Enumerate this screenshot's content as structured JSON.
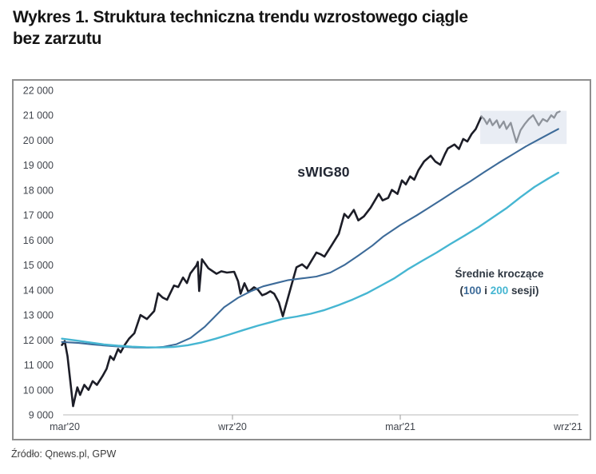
{
  "title_line1": "Wykres 1. Struktura techniczna trendu wzrostowego ciągle",
  "title_line2": "bez zarzutu",
  "source": "Źródło: Qnews.pl, GPW",
  "chart_data": {
    "type": "line",
    "title": "Wykres 1. Struktura techniczna trendu wzrostowego ciągle bez zarzutu",
    "series_label": "sWIG80",
    "legend": {
      "title": "Średnie kroczące",
      "open": "(",
      "ma100": "100",
      "mid": " i ",
      "ma200": "200",
      "close": " sesji)"
    },
    "colors": {
      "swig80": "#1c1d27",
      "swig80_recent": "#8e939b",
      "ma100": "#3d6b99",
      "ma200": "#46b6d2",
      "highlight": "#e9edf4",
      "axis_line": "#c6c6c6",
      "tick": "#a9a9a9",
      "axis_text": "#41454d"
    },
    "grid": false,
    "legend_position": "inside-right",
    "x_axis": {
      "unit": "months since mar'20",
      "tick_labels": [
        "mar'20",
        "wrz'20",
        "mar'21",
        "wrz'21"
      ],
      "tick_months": [
        0,
        6,
        12,
        18
      ]
    },
    "y_axis": {
      "min": 9000,
      "max": 22000,
      "step": 1000,
      "labels": [
        "22 000",
        "21 000",
        "20 000",
        "19 000",
        "18 000",
        "17 000",
        "16 000",
        "15 000",
        "14 000",
        "13 000",
        "12 000",
        "11 000",
        "10 000",
        "9 000"
      ]
    },
    "highlight": {
      "m0": 14.86,
      "m1": 17.95,
      "v0": 19850,
      "v1": 21180
    },
    "series": [
      {
        "name": "sWIG80",
        "color_key": "swig80",
        "width": 2.6,
        "points": [
          [
            -0.1,
            11800
          ],
          [
            0.0,
            11950
          ],
          [
            0.1,
            11350
          ],
          [
            0.3,
            9350
          ],
          [
            0.45,
            10100
          ],
          [
            0.55,
            9800
          ],
          [
            0.7,
            10200
          ],
          [
            0.85,
            10000
          ],
          [
            1.0,
            10350
          ],
          [
            1.15,
            10200
          ],
          [
            1.35,
            10550
          ],
          [
            1.5,
            10850
          ],
          [
            1.63,
            11350
          ],
          [
            1.75,
            11200
          ],
          [
            1.91,
            11640
          ],
          [
            2.0,
            11500
          ],
          [
            2.14,
            11790
          ],
          [
            2.3,
            12050
          ],
          [
            2.49,
            12270
          ],
          [
            2.71,
            13000
          ],
          [
            2.94,
            12840
          ],
          [
            3.2,
            13160
          ],
          [
            3.34,
            13870
          ],
          [
            3.5,
            13700
          ],
          [
            3.66,
            13610
          ],
          [
            3.91,
            14180
          ],
          [
            4.06,
            14120
          ],
          [
            4.23,
            14500
          ],
          [
            4.37,
            14280
          ],
          [
            4.49,
            14660
          ],
          [
            4.71,
            14980
          ],
          [
            4.76,
            15130
          ],
          [
            4.81,
            13960
          ],
          [
            4.91,
            15230
          ],
          [
            5.14,
            14870
          ],
          [
            5.43,
            14650
          ],
          [
            5.6,
            14750
          ],
          [
            5.8,
            14700
          ],
          [
            6.06,
            14730
          ],
          [
            6.2,
            14350
          ],
          [
            6.29,
            13850
          ],
          [
            6.43,
            14270
          ],
          [
            6.57,
            13920
          ],
          [
            6.77,
            14110
          ],
          [
            6.91,
            14010
          ],
          [
            7.06,
            13790
          ],
          [
            7.2,
            13850
          ],
          [
            7.35,
            13950
          ],
          [
            7.49,
            13850
          ],
          [
            7.66,
            13500
          ],
          [
            7.8,
            12950
          ],
          [
            8.09,
            14110
          ],
          [
            8.29,
            14910
          ],
          [
            8.49,
            15030
          ],
          [
            8.66,
            14870
          ],
          [
            9.0,
            15500
          ],
          [
            9.14,
            15440
          ],
          [
            9.29,
            15340
          ],
          [
            9.55,
            15800
          ],
          [
            9.8,
            16250
          ],
          [
            10.0,
            17050
          ],
          [
            10.14,
            16890
          ],
          [
            10.34,
            17210
          ],
          [
            10.5,
            16790
          ],
          [
            10.7,
            16950
          ],
          [
            10.94,
            17300
          ],
          [
            11.23,
            17850
          ],
          [
            11.37,
            17590
          ],
          [
            11.57,
            17690
          ],
          [
            11.7,
            18010
          ],
          [
            11.9,
            17850
          ],
          [
            12.06,
            18390
          ],
          [
            12.2,
            18230
          ],
          [
            12.35,
            18550
          ],
          [
            12.5,
            18420
          ],
          [
            12.65,
            18800
          ],
          [
            12.85,
            19150
          ],
          [
            13.09,
            19380
          ],
          [
            13.25,
            19150
          ],
          [
            13.43,
            19020
          ],
          [
            13.6,
            19450
          ],
          [
            13.7,
            19670
          ],
          [
            13.94,
            19830
          ],
          [
            14.1,
            19650
          ],
          [
            14.25,
            20050
          ],
          [
            14.4,
            19950
          ],
          [
            14.55,
            20250
          ],
          [
            14.7,
            20450
          ],
          [
            14.8,
            20700
          ],
          [
            14.9,
            20950
          ]
        ]
      },
      {
        "name": "sWIG80-recent",
        "color_key": "swig80_recent",
        "width": 2.3,
        "points": [
          [
            14.9,
            20950
          ],
          [
            15.0,
            20850
          ],
          [
            15.1,
            20650
          ],
          [
            15.2,
            20850
          ],
          [
            15.3,
            20600
          ],
          [
            15.45,
            20800
          ],
          [
            15.55,
            20500
          ],
          [
            15.7,
            20750
          ],
          [
            15.8,
            20450
          ],
          [
            15.95,
            20700
          ],
          [
            16.05,
            20300
          ],
          [
            16.15,
            19920
          ],
          [
            16.3,
            20400
          ],
          [
            16.45,
            20650
          ],
          [
            16.6,
            20850
          ],
          [
            16.75,
            21000
          ],
          [
            16.85,
            20800
          ],
          [
            16.95,
            20600
          ],
          [
            17.1,
            20850
          ],
          [
            17.25,
            20750
          ],
          [
            17.4,
            21000
          ],
          [
            17.5,
            20900
          ],
          [
            17.6,
            21100
          ],
          [
            17.7,
            21150
          ]
        ]
      },
      {
        "name": "MA-100-sesji",
        "color_key": "ma100",
        "width": 2.1,
        "points": [
          [
            -0.1,
            11920
          ],
          [
            0.5,
            11880
          ],
          [
            1.0,
            11820
          ],
          [
            1.5,
            11770
          ],
          [
            2.0,
            11730
          ],
          [
            2.5,
            11700
          ],
          [
            3.0,
            11690
          ],
          [
            3.5,
            11720
          ],
          [
            4.0,
            11830
          ],
          [
            4.5,
            12080
          ],
          [
            5.0,
            12520
          ],
          [
            5.7,
            13310
          ],
          [
            6.2,
            13690
          ],
          [
            6.65,
            13950
          ],
          [
            7.1,
            14150
          ],
          [
            7.6,
            14290
          ],
          [
            8.0,
            14400
          ],
          [
            8.5,
            14470
          ],
          [
            9.0,
            14540
          ],
          [
            9.5,
            14700
          ],
          [
            10.0,
            15000
          ],
          [
            10.5,
            15380
          ],
          [
            11.0,
            15780
          ],
          [
            11.4,
            16150
          ],
          [
            12.0,
            16600
          ],
          [
            12.6,
            17000
          ],
          [
            13.0,
            17280
          ],
          [
            13.5,
            17640
          ],
          [
            14.0,
            18000
          ],
          [
            14.5,
            18350
          ],
          [
            15.0,
            18720
          ],
          [
            15.5,
            19080
          ],
          [
            16.0,
            19420
          ],
          [
            16.5,
            19760
          ],
          [
            17.0,
            20060
          ],
          [
            17.4,
            20300
          ],
          [
            17.65,
            20450
          ]
        ]
      },
      {
        "name": "MA-200-sesji",
        "color_key": "ma200",
        "width": 2.4,
        "points": [
          [
            -0.1,
            12050
          ],
          [
            0.4,
            11980
          ],
          [
            0.9,
            11900
          ],
          [
            1.4,
            11820
          ],
          [
            1.9,
            11770
          ],
          [
            2.4,
            11730
          ],
          [
            2.9,
            11710
          ],
          [
            3.4,
            11700
          ],
          [
            3.9,
            11720
          ],
          [
            4.4,
            11790
          ],
          [
            4.9,
            11900
          ],
          [
            5.4,
            12050
          ],
          [
            5.9,
            12220
          ],
          [
            6.4,
            12400
          ],
          [
            6.9,
            12570
          ],
          [
            7.4,
            12720
          ],
          [
            7.8,
            12850
          ],
          [
            8.3,
            12940
          ],
          [
            8.8,
            13050
          ],
          [
            9.3,
            13200
          ],
          [
            9.8,
            13400
          ],
          [
            10.3,
            13620
          ],
          [
            10.8,
            13870
          ],
          [
            11.3,
            14170
          ],
          [
            11.8,
            14480
          ],
          [
            12.3,
            14850
          ],
          [
            12.8,
            15180
          ],
          [
            13.3,
            15500
          ],
          [
            13.8,
            15850
          ],
          [
            14.3,
            16180
          ],
          [
            14.8,
            16520
          ],
          [
            15.3,
            16900
          ],
          [
            15.8,
            17280
          ],
          [
            16.3,
            17720
          ],
          [
            16.8,
            18130
          ],
          [
            17.3,
            18470
          ],
          [
            17.65,
            18700
          ]
        ]
      }
    ]
  }
}
